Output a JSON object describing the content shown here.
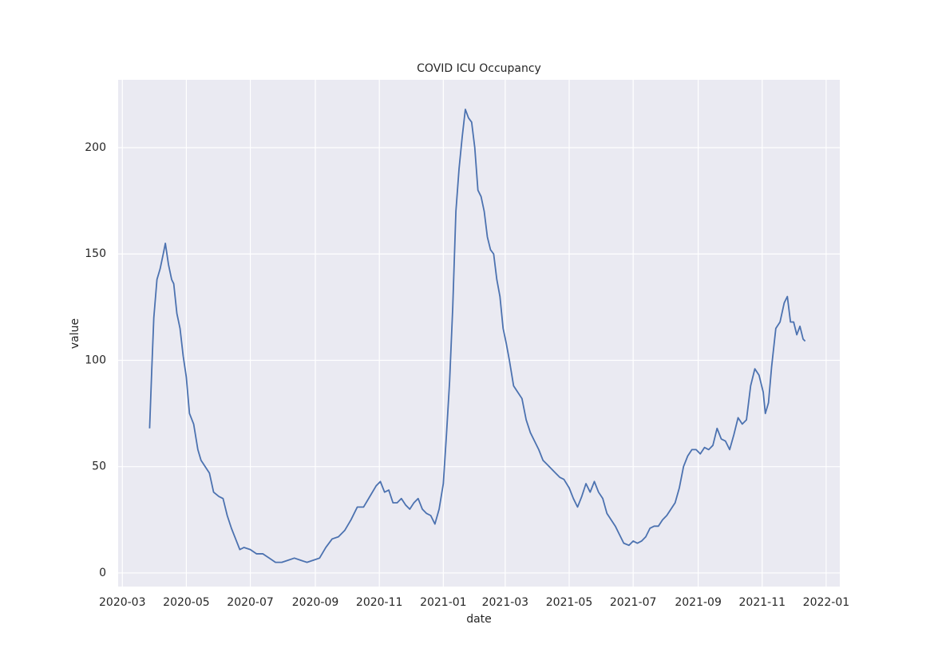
{
  "chart_data": {
    "type": "line",
    "title": "COVID ICU Occupancy",
    "x_label": "date",
    "y_label": "value",
    "color": "#4c72b0",
    "grid": true,
    "x": [
      "2020-03-27",
      "2020-03-29",
      "2020-03-31",
      "2020-04-03",
      "2020-04-06",
      "2020-04-09",
      "2020-04-11",
      "2020-04-14",
      "2020-04-17",
      "2020-04-19",
      "2020-04-22",
      "2020-04-25",
      "2020-04-28",
      "2020-05-01",
      "2020-05-04",
      "2020-05-08",
      "2020-05-12",
      "2020-05-15",
      "2020-05-19",
      "2020-05-23",
      "2020-05-27",
      "2020-06-01",
      "2020-06-05",
      "2020-06-09",
      "2020-06-13",
      "2020-06-17",
      "2020-06-21",
      "2020-06-25",
      "2020-07-01",
      "2020-07-07",
      "2020-07-13",
      "2020-07-19",
      "2020-07-25",
      "2020-07-31",
      "2020-08-06",
      "2020-08-12",
      "2020-08-18",
      "2020-08-24",
      "2020-08-30",
      "2020-09-05",
      "2020-09-11",
      "2020-09-17",
      "2020-09-23",
      "2020-09-29",
      "2020-10-05",
      "2020-10-11",
      "2020-10-17",
      "2020-10-23",
      "2020-10-29",
      "2020-11-02",
      "2020-11-06",
      "2020-11-10",
      "2020-11-14",
      "2020-11-18",
      "2020-11-22",
      "2020-11-26",
      "2020-11-30",
      "2020-12-04",
      "2020-12-08",
      "2020-12-12",
      "2020-12-16",
      "2020-12-20",
      "2020-12-24",
      "2020-12-28",
      "2021-01-01",
      "2021-01-04",
      "2021-01-07",
      "2021-01-10",
      "2021-01-13",
      "2021-01-16",
      "2021-01-19",
      "2021-01-22",
      "2021-01-25",
      "2021-01-28",
      "2021-01-31",
      "2021-02-03",
      "2021-02-06",
      "2021-02-09",
      "2021-02-12",
      "2021-02-15",
      "2021-02-18",
      "2021-02-21",
      "2021-02-24",
      "2021-02-27",
      "2021-03-02",
      "2021-03-05",
      "2021-03-09",
      "2021-03-13",
      "2021-03-17",
      "2021-03-21",
      "2021-03-25",
      "2021-03-29",
      "2021-04-02",
      "2021-04-06",
      "2021-04-10",
      "2021-04-14",
      "2021-04-18",
      "2021-04-22",
      "2021-04-26",
      "2021-05-01",
      "2021-05-05",
      "2021-05-09",
      "2021-05-13",
      "2021-05-17",
      "2021-05-21",
      "2021-05-25",
      "2021-05-29",
      "2021-06-02",
      "2021-06-06",
      "2021-06-10",
      "2021-06-14",
      "2021-06-18",
      "2021-06-22",
      "2021-06-27",
      "2021-07-01",
      "2021-07-05",
      "2021-07-09",
      "2021-07-13",
      "2021-07-17",
      "2021-07-21",
      "2021-07-25",
      "2021-07-29",
      "2021-08-02",
      "2021-08-06",
      "2021-08-10",
      "2021-08-14",
      "2021-08-18",
      "2021-08-22",
      "2021-08-26",
      "2021-08-30",
      "2021-09-03",
      "2021-09-07",
      "2021-09-11",
      "2021-09-15",
      "2021-09-19",
      "2021-09-23",
      "2021-09-27",
      "2021-10-01",
      "2021-10-05",
      "2021-10-09",
      "2021-10-13",
      "2021-10-17",
      "2021-10-21",
      "2021-10-25",
      "2021-10-29",
      "2021-11-02",
      "2021-11-04",
      "2021-11-07",
      "2021-11-10",
      "2021-11-14",
      "2021-11-18",
      "2021-11-22",
      "2021-11-25",
      "2021-11-28",
      "2021-12-01",
      "2021-12-04",
      "2021-12-07",
      "2021-12-10",
      "2021-12-12"
    ],
    "values": [
      68,
      95,
      120,
      138,
      143,
      150,
      155,
      145,
      138,
      136,
      122,
      115,
      102,
      92,
      75,
      70,
      58,
      53,
      50,
      47,
      38,
      36,
      35,
      27,
      21,
      16,
      11,
      12,
      11,
      9,
      9,
      7,
      5,
      5,
      6,
      7,
      6,
      5,
      6,
      7,
      12,
      16,
      17,
      20,
      25,
      31,
      31,
      36,
      41,
      43,
      38,
      39,
      33,
      33,
      35,
      32,
      30,
      33,
      35,
      30,
      28,
      27,
      23,
      30,
      42,
      65,
      90,
      125,
      170,
      190,
      205,
      218,
      214,
      212,
      200,
      180,
      177,
      170,
      158,
      152,
      150,
      138,
      130,
      115,
      108,
      100,
      88,
      85,
      82,
      72,
      66,
      62,
      58,
      53,
      51,
      49,
      47,
      45,
      44,
      40,
      35,
      31,
      36,
      42,
      38,
      43,
      38,
      35,
      28,
      25,
      22,
      18,
      14,
      13,
      15,
      14,
      15,
      17,
      21,
      22,
      22,
      25,
      27,
      30,
      33,
      40,
      50,
      55,
      58,
      58,
      56,
      59,
      58,
      60,
      68,
      63,
      62,
      58,
      65,
      73,
      70,
      72,
      88,
      96,
      93,
      85,
      75,
      80,
      97,
      115,
      118,
      127,
      130,
      118,
      118,
      112,
      116,
      110,
      109
    ],
    "xlim": [
      "2020-02-26",
      "2022-01-14"
    ],
    "xticks": [
      {
        "value": "2020-03-01",
        "label": "2020-03"
      },
      {
        "value": "2020-05-01",
        "label": "2020-05"
      },
      {
        "value": "2020-07-01",
        "label": "2020-07"
      },
      {
        "value": "2020-09-01",
        "label": "2020-09"
      },
      {
        "value": "2020-11-01",
        "label": "2020-11"
      },
      {
        "value": "2021-01-01",
        "label": "2021-01"
      },
      {
        "value": "2021-03-01",
        "label": "2021-03"
      },
      {
        "value": "2021-05-01",
        "label": "2021-05"
      },
      {
        "value": "2021-07-01",
        "label": "2021-07"
      },
      {
        "value": "2021-09-01",
        "label": "2021-09"
      },
      {
        "value": "2021-11-01",
        "label": "2021-11"
      },
      {
        "value": "2022-01-01",
        "label": "2022-01"
      }
    ],
    "ylim": [
      -6.4,
      231.9
    ],
    "yticks": [
      0,
      50,
      100,
      150,
      200
    ]
  }
}
